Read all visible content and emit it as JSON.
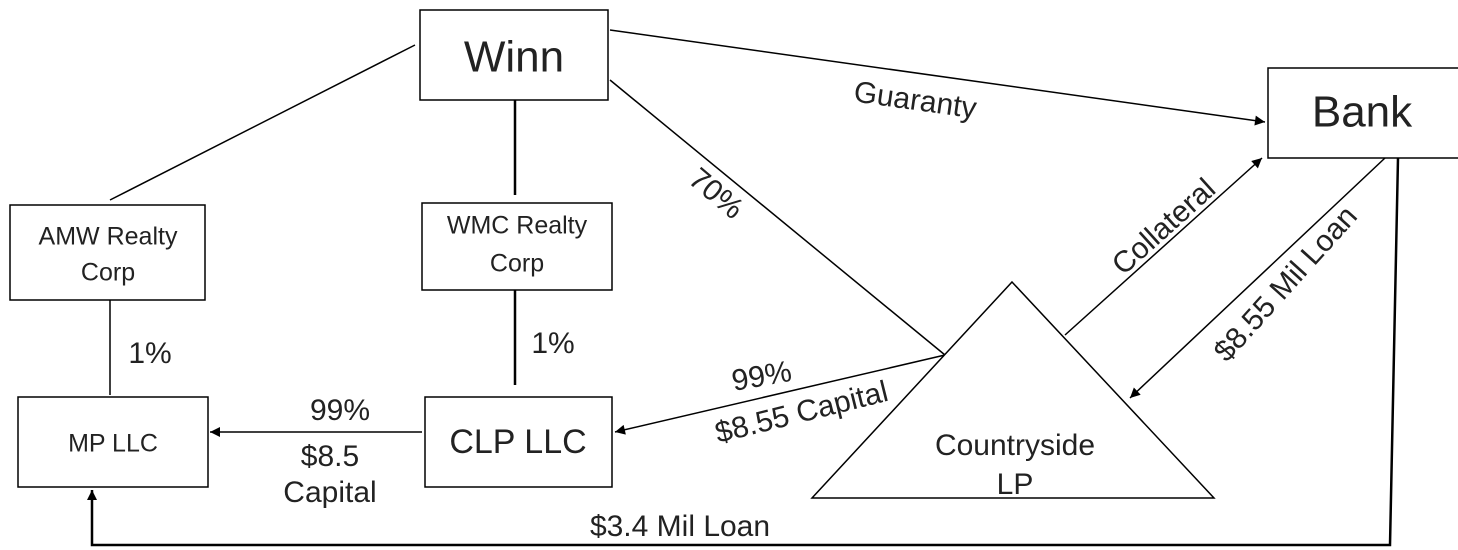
{
  "nodes": [
    {
      "id": "winn",
      "label": [
        "Winn"
      ]
    },
    {
      "id": "bank",
      "label": [
        "Bank"
      ]
    },
    {
      "id": "amw",
      "label": [
        "AMW Realty",
        "Corp"
      ]
    },
    {
      "id": "wmc",
      "label": [
        "WMC Realty",
        "Corp"
      ]
    },
    {
      "id": "mp",
      "label": [
        "MP LLC"
      ]
    },
    {
      "id": "clp",
      "label": [
        "CLP LLC"
      ]
    },
    {
      "id": "countryside",
      "label": [
        "Countryside",
        "LP"
      ]
    }
  ],
  "edges": [
    {
      "label": [
        "Guaranty"
      ]
    },
    {
      "label": [
        "70%"
      ]
    },
    {
      "label": [
        "Collateral"
      ]
    },
    {
      "label": [
        "$8.55 Mil Loan"
      ]
    },
    {
      "label": [
        "99%",
        "$8.55 Capital"
      ]
    },
    {
      "label": [
        "99%",
        "$8.5",
        "Capital"
      ]
    },
    {
      "label": [
        "1%"
      ]
    },
    {
      "label": [
        "1%"
      ]
    },
    {
      "label": [
        "$3.4 Mil Loan"
      ]
    }
  ]
}
